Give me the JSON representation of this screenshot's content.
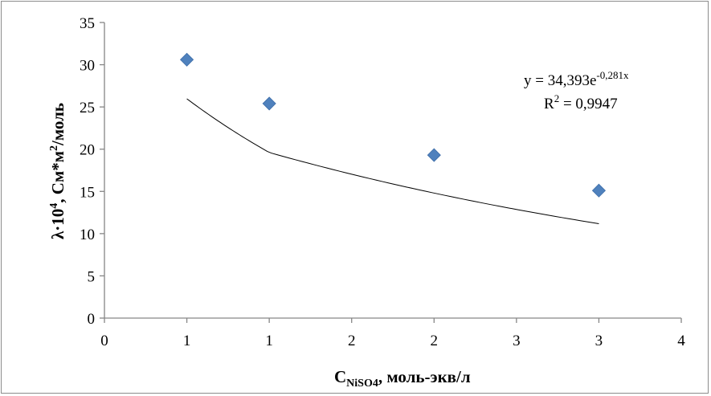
{
  "chart_data": {
    "type": "scatter",
    "title": "",
    "x_tick_labels": [
      "0",
      "1",
      "1",
      "2",
      "2",
      "3",
      "3",
      "4"
    ],
    "y_tick_labels": [
      "0",
      "5",
      "10",
      "15",
      "20",
      "25",
      "30",
      "35"
    ],
    "xlim": [
      0,
      3.5
    ],
    "ylim": [
      0,
      35
    ],
    "grid": false,
    "legend": "none",
    "xlabel": {
      "main": "C",
      "sub": "NiSO4",
      "rest": ", моль-экв/л"
    },
    "ylabel": {
      "main": "λ·10",
      "sup1": "4",
      "mid": ", См*м",
      "sup2": "2",
      "rest": "/моль"
    },
    "series": [
      {
        "marker": "diamond",
        "color": "#4f81bd",
        "points": [
          {
            "x": 0.5,
            "y": 30.6
          },
          {
            "x": 1.0,
            "y": 25.4
          },
          {
            "x": 2.0,
            "y": 19.3
          },
          {
            "x": 3.0,
            "y": 15.1
          }
        ]
      }
    ],
    "trendline": {
      "type": "exponential",
      "a": 34.393,
      "b": -0.281,
      "x_from": 0.5,
      "x_to": 3.0,
      "equation": {
        "prefix": "y = 34,393e",
        "exponent": "-0,281x"
      },
      "r2": {
        "label": "R",
        "sup": "2",
        "value": " = 0,9947"
      }
    },
    "colors": {
      "marker": "#4f81bd",
      "axis": "#868686",
      "trendline": "#000000"
    }
  }
}
